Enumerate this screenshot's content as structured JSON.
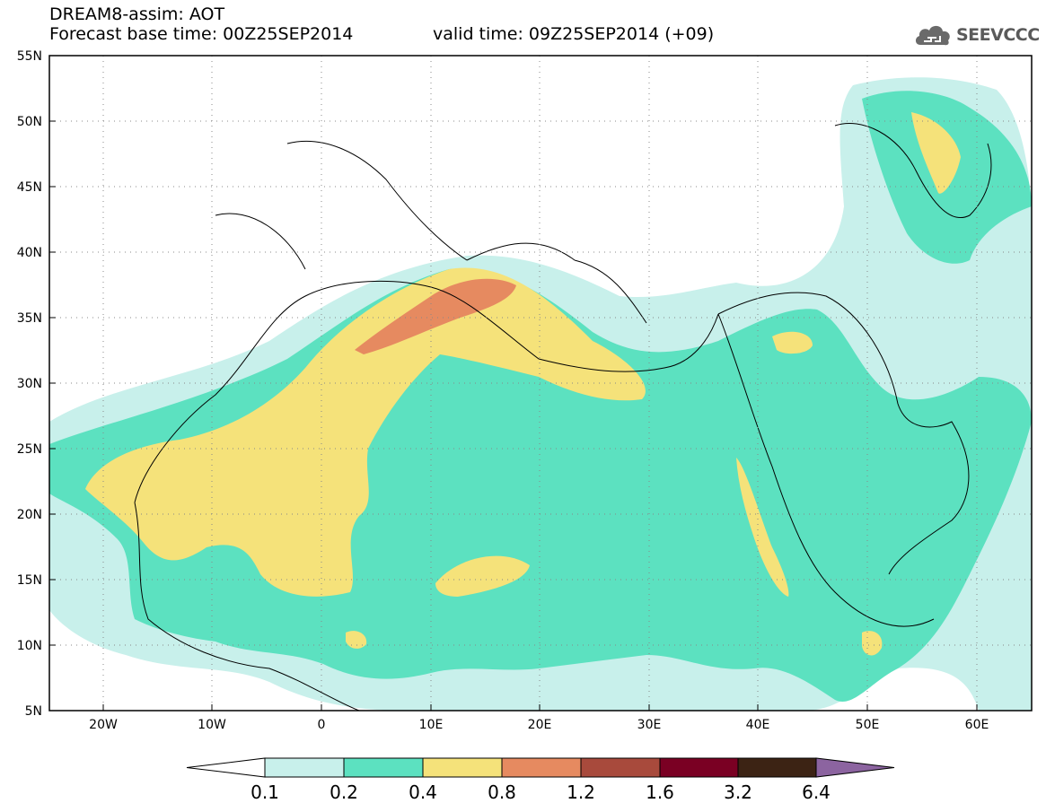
{
  "title": {
    "line1": "DREAM8-assim: AOT",
    "line2": "Forecast base time: 00Z25SEP2014",
    "line3": "valid time: 09Z25SEP2014 (+09)"
  },
  "logo": {
    "text": "SEEVCCC",
    "icon": "cloud-icon"
  },
  "map": {
    "lon_range": [
      -25,
      65
    ],
    "lat_range": [
      5,
      55
    ],
    "lon_ticks": [
      "20W",
      "10W",
      "0",
      "10E",
      "20E",
      "30E",
      "40E",
      "50E",
      "60E"
    ],
    "lat_ticks": [
      "55N",
      "50N",
      "45N",
      "40N",
      "35N",
      "30N",
      "25N",
      "20N",
      "15N",
      "10N",
      "5N"
    ],
    "grid": "dotted"
  },
  "colorbar": {
    "labels": [
      "0.1",
      "0.2",
      "0.4",
      "0.8",
      "1.2",
      "1.6",
      "3.2",
      "6.4"
    ],
    "colors": [
      "#ffffff",
      "#c8f0eb",
      "#5ce1c0",
      "#f5e27a",
      "#e68a60",
      "#a84a3c",
      "#7a0023",
      "#3c2314",
      "#8c64a0"
    ]
  }
}
